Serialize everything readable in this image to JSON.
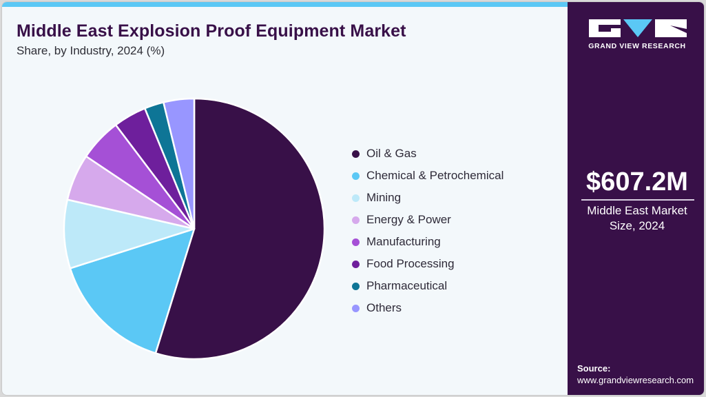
{
  "header": {
    "title": "Middle East Explosion Proof Equipment Market",
    "subtitle": "Share, by Industry, 2024 (%)"
  },
  "sidebar": {
    "brand": "GRAND VIEW RESEARCH",
    "market_value": "$607.2M",
    "market_label_line1": "Middle East Market",
    "market_label_line2": "Size, 2024",
    "source_heading": "Source:",
    "source_url": "www.grandviewresearch.com"
  },
  "colors": {
    "accent_bar": "#5bc8f5",
    "brand_purple": "#381048"
  },
  "chart_data": {
    "type": "pie",
    "title": "Middle East Explosion Proof Equipment Market",
    "subtitle": "Share, by Industry, 2024 (%)",
    "start_angle_deg": 0,
    "direction": "clockwise",
    "legend_position": "right",
    "categories": [
      "Oil & Gas",
      "Chemical & Petrochemical",
      "Mining",
      "Energy & Power",
      "Manufacturing",
      "Food Processing",
      "Pharmaceutical",
      "Others"
    ],
    "values": [
      54.8,
      15.3,
      8.5,
      5.8,
      5.3,
      4.1,
      2.4,
      3.8
    ],
    "colors": [
      "#381048",
      "#5bc8f5",
      "#bde9f9",
      "#d6a9ec",
      "#a550d6",
      "#6e1f9c",
      "#0e7596",
      "#9896ff"
    ],
    "unit": "%"
  }
}
